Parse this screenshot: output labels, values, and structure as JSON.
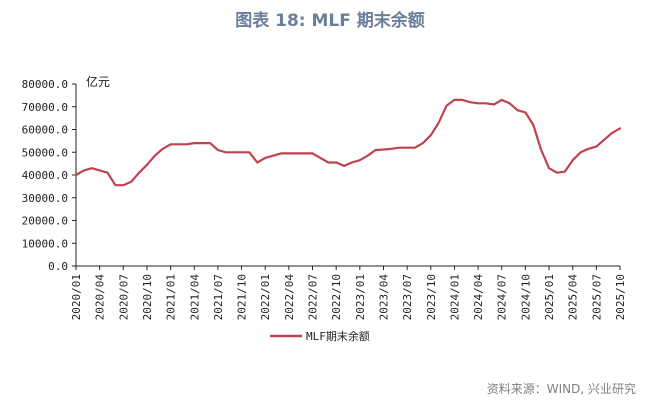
{
  "header": {
    "title": "图表 18: MLF 期末余额"
  },
  "footer": {
    "source": "资料来源：WIND, 兴业研究"
  },
  "colors": {
    "line": "#c0424f",
    "axis": "#222222",
    "title": "#6a7f9a"
  },
  "chart_data": {
    "type": "line",
    "title": "图表 18: MLF 期末余额",
    "ylabel": "亿元",
    "xlabel": "",
    "ylim": [
      0,
      80000
    ],
    "yticks": [
      "0.0",
      "10000.0",
      "20000.0",
      "30000.0",
      "40000.0",
      "50000.0",
      "60000.0",
      "70000.0",
      "80000.0"
    ],
    "grid": false,
    "legend": "bottom-left",
    "x_ticks": [
      "2020/01",
      "2020/04",
      "2020/07",
      "2020/10",
      "2021/01",
      "2021/04",
      "2021/07",
      "2021/10",
      "2022/01",
      "2022/04",
      "2022/07",
      "2022/10",
      "2023/01",
      "2023/04",
      "2023/07",
      "2023/10",
      "2024/01",
      "2024/04",
      "2024/07",
      "2024/10",
      "2025/01",
      "2025/04",
      "2025/07",
      "2025/10"
    ],
    "series": [
      {
        "name": "MLF期末余额",
        "x": [
          "2020/01",
          "2020/02",
          "2020/03",
          "2020/04",
          "2020/05",
          "2020/06",
          "2020/07",
          "2020/08",
          "2020/09",
          "2020/10",
          "2020/11",
          "2020/12",
          "2021/01",
          "2021/02",
          "2021/03",
          "2021/04",
          "2021/05",
          "2021/06",
          "2021/07",
          "2021/08",
          "2021/09",
          "2021/10",
          "2021/11",
          "2021/12",
          "2022/01",
          "2022/02",
          "2022/03",
          "2022/04",
          "2022/05",
          "2022/06",
          "2022/07",
          "2022/08",
          "2022/09",
          "2022/10",
          "2022/11",
          "2022/12",
          "2023/01",
          "2023/02",
          "2023/03",
          "2023/04",
          "2023/05",
          "2023/06",
          "2023/07",
          "2023/08",
          "2023/09",
          "2023/10",
          "2023/11",
          "2023/12",
          "2024/01",
          "2024/02",
          "2024/03",
          "2024/04",
          "2024/05",
          "2024/06",
          "2024/07",
          "2024/08",
          "2024/09",
          "2024/10",
          "2024/11",
          "2024/12",
          "2025/01",
          "2025/02",
          "2025/03",
          "2025/04",
          "2025/05",
          "2025/06",
          "2025/07",
          "2025/08",
          "2025/09",
          "2025/10"
        ],
        "values": [
          40000,
          42000,
          43000,
          42000,
          41000,
          35500,
          35500,
          37000,
          41000,
          44500,
          48500,
          51500,
          53500,
          53500,
          53500,
          54000,
          54000,
          54000,
          51000,
          50000,
          50000,
          50000,
          50000,
          45500,
          47500,
          48500,
          49500,
          49500,
          49500,
          49500,
          49500,
          47500,
          45500,
          45500,
          44000,
          45500,
          46500,
          48500,
          51000,
          51200,
          51500,
          52000,
          52000,
          52000,
          54000,
          57500,
          63000,
          70500,
          73000,
          73000,
          72000,
          71500,
          71500,
          71000,
          73000,
          71500,
          68500,
          67500,
          62000,
          51000,
          43000,
          41000,
          41500,
          46500,
          50000,
          51500,
          52500,
          55500,
          58500,
          60500
        ]
      }
    ]
  }
}
